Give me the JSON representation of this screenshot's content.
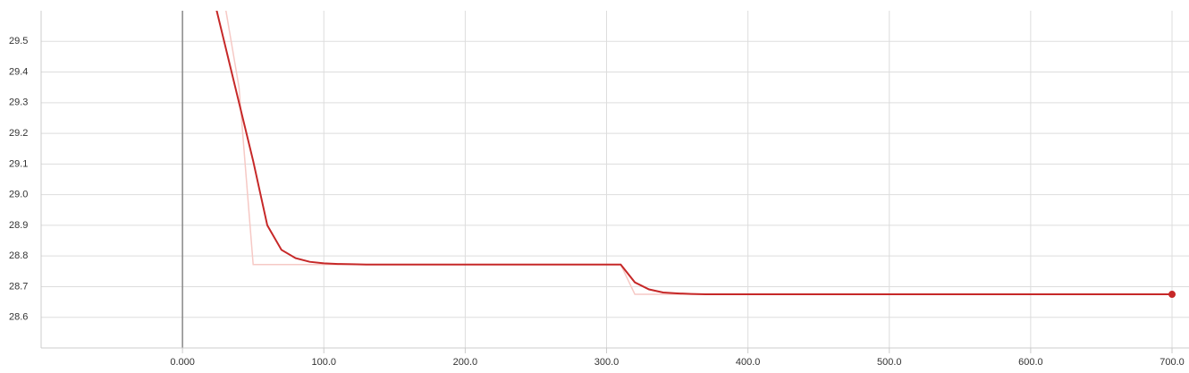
{
  "chart_data": {
    "type": "line",
    "x": [
      20,
      30,
      40,
      50,
      60,
      70,
      80,
      90,
      100,
      110,
      120,
      130,
      140,
      150,
      160,
      170,
      180,
      190,
      200,
      210,
      220,
      230,
      240,
      250,
      260,
      270,
      280,
      290,
      300,
      310,
      320,
      330,
      340,
      350,
      360,
      370,
      380,
      390,
      400,
      410,
      420,
      430,
      440,
      450,
      460,
      470,
      480,
      490,
      500,
      510,
      520,
      530,
      540,
      550,
      560,
      570,
      580,
      590,
      600,
      610,
      620,
      630,
      640,
      650,
      660,
      670,
      680,
      690,
      700
    ],
    "series": [
      {
        "color": "#f6c9c5",
        "values": [
          null,
          29.62,
          29.35,
          28.772,
          28.772,
          28.772,
          28.772,
          28.772,
          28.772,
          28.772,
          28.772,
          28.772,
          28.772,
          28.772,
          28.772,
          28.772,
          28.772,
          28.772,
          28.772,
          28.772,
          28.772,
          28.772,
          28.772,
          28.772,
          28.772,
          28.772,
          28.772,
          28.772,
          28.772,
          28.772,
          28.675,
          28.675,
          28.675,
          28.675,
          28.675,
          28.675,
          28.675,
          28.675,
          28.675,
          28.675,
          28.675,
          28.675,
          28.675,
          28.675,
          28.675,
          28.675,
          28.675,
          28.675,
          28.675,
          28.675,
          28.675,
          28.675,
          28.675,
          28.675,
          28.675,
          28.675,
          28.675,
          28.675,
          28.675,
          28.675,
          28.675,
          28.675,
          28.675,
          28.675,
          28.675,
          28.675,
          28.675,
          28.675,
          28.675
        ]
      },
      {
        "color": "#c62828",
        "values": [
          29.68,
          29.49,
          29.3,
          29.11,
          28.9,
          28.82,
          28.793,
          28.781,
          28.776,
          28.774,
          28.773,
          28.772,
          28.772,
          28.772,
          28.772,
          28.772,
          28.772,
          28.772,
          28.772,
          28.772,
          28.772,
          28.772,
          28.772,
          28.772,
          28.772,
          28.772,
          28.772,
          28.772,
          28.772,
          28.772,
          28.714,
          28.691,
          28.681,
          28.678,
          28.676,
          28.675,
          28.675,
          28.675,
          28.675,
          28.675,
          28.675,
          28.675,
          28.675,
          28.675,
          28.675,
          28.675,
          28.675,
          28.675,
          28.675,
          28.675,
          28.675,
          28.675,
          28.675,
          28.675,
          28.675,
          28.675,
          28.675,
          28.675,
          28.675,
          28.675,
          28.675,
          28.675,
          28.675,
          28.675,
          28.675,
          28.675,
          28.675,
          28.675,
          28.675
        ]
      }
    ],
    "xlim": [
      -100,
      712
    ],
    "ylim": [
      28.5,
      29.6
    ],
    "xticks": [
      {
        "value": 0,
        "label": "0.000"
      },
      {
        "value": 100,
        "label": "100.0"
      },
      {
        "value": 200,
        "label": "200.0"
      },
      {
        "value": 300,
        "label": "300.0"
      },
      {
        "value": 400,
        "label": "400.0"
      },
      {
        "value": 500,
        "label": "500.0"
      },
      {
        "value": 600,
        "label": "600.0"
      },
      {
        "value": 700,
        "label": "700.0"
      }
    ],
    "yticks": [
      28.6,
      28.7,
      28.8,
      28.9,
      {
        "value": 29,
        "label": "29.0"
      },
      29.1,
      29.2,
      29.3,
      29.4,
      29.5
    ],
    "grid": true
  }
}
